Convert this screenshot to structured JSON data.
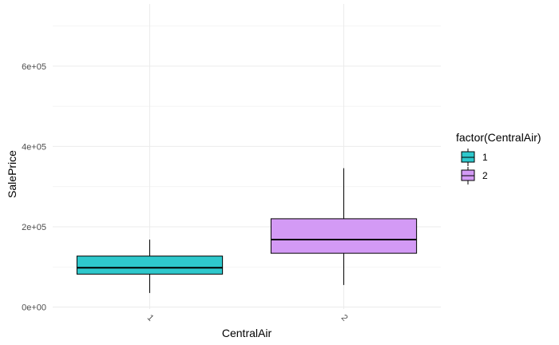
{
  "chart_data": {
    "type": "box",
    "xlabel": "CentralAir",
    "ylabel": "SalePrice",
    "categories": [
      "1",
      "2"
    ],
    "ylim": [
      -5000,
      755000
    ],
    "y_ticks": [
      0,
      200000,
      400000,
      600000
    ],
    "y_tick_labels": [
      "0e+00",
      "2e+05",
      "4e+05",
      "6e+05"
    ],
    "grid": true,
    "legend": {
      "title": "factor(CentralAir)",
      "position": "right",
      "entries": [
        "1",
        "2"
      ]
    },
    "boxes": [
      {
        "category": "1",
        "whisker_low": 35000,
        "q1": 82000,
        "median": 98000,
        "q3": 127000,
        "whisker_high": 168000,
        "color": "#2ec8cc"
      },
      {
        "category": "2",
        "whisker_low": 55000,
        "q1": 134000,
        "median": 168000,
        "q3": 220000,
        "whisker_high": 346000,
        "color": "#d39af5"
      }
    ]
  }
}
